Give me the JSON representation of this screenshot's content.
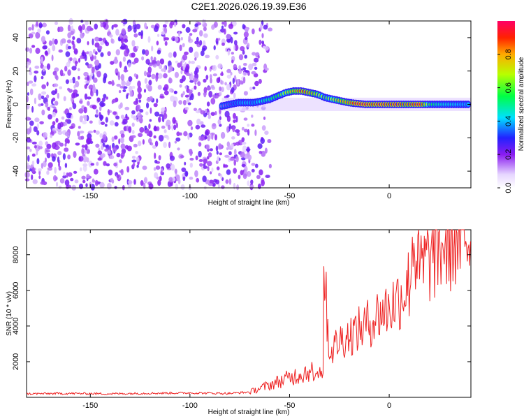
{
  "title": "C2E1.2026.026.19.39.E36",
  "chart_data": [
    {
      "type": "heatmap",
      "xlabel": "Height of straight line (km)",
      "ylabel": "Frequency (Hz)",
      "xlim": [
        -182,
        41
      ],
      "ylim": [
        -50,
        50
      ],
      "xticks": [
        -150,
        -100,
        -50,
        0
      ],
      "yticks": [
        -40,
        -20,
        0,
        20,
        40
      ],
      "colorbar": {
        "label": "Normalized spectral amplitude",
        "range": [
          0,
          1
        ],
        "ticks": [
          "0.0",
          "0.2",
          "0.4",
          "0.6",
          "0.8"
        ],
        "tick_values": [
          0,
          0.2,
          0.4,
          0.6,
          0.8
        ]
      },
      "noise_region": {
        "x_range": [
          -182,
          -63
        ],
        "amplitude": "low (0.1-0.25)"
      },
      "signal_track": {
        "x": [
          -84,
          -80,
          -76,
          -72,
          -68,
          -64,
          -60,
          -56,
          -52,
          -48,
          -44,
          -40,
          -36,
          -32,
          -28,
          -24,
          -20,
          -16,
          -12,
          -8,
          -4,
          0,
          4,
          8,
          12,
          16,
          20,
          24,
          28,
          32,
          36,
          40
        ],
        "frequency": [
          -1,
          0,
          1,
          1,
          1,
          2,
          3,
          5,
          7,
          8,
          8,
          7,
          6,
          4,
          3,
          2,
          1,
          0.5,
          0,
          0,
          0,
          0,
          0,
          0,
          0,
          0,
          0,
          0,
          0,
          0,
          0,
          0
        ],
        "amplitude": [
          0.15,
          0.2,
          0.35,
          0.4,
          0.35,
          0.45,
          0.5,
          0.55,
          0.7,
          0.8,
          0.9,
          0.85,
          0.75,
          0.6,
          0.7,
          0.8,
          0.85,
          0.95,
          0.95,
          0.9,
          0.95,
          0.9,
          0.95,
          0.85,
          0.9,
          0.95,
          0.6,
          0.5,
          0.45,
          0.45,
          0.4,
          0.4
        ]
      }
    },
    {
      "type": "line",
      "xlabel": "Height of straight line (km)",
      "ylabel": "SNR (10 * v/v)",
      "xlim": [
        -182,
        41
      ],
      "ylim": [
        0,
        9400
      ],
      "xticks": [
        -150,
        -100,
        -50,
        0
      ],
      "yticks": [
        2000,
        4000,
        6000,
        8000
      ],
      "color": "#ee2222",
      "series": [
        {
          "name": "SNR",
          "x": [
            -182,
            -160,
            -140,
            -120,
            -100,
            -80,
            -70,
            -65,
            -60,
            -55,
            -50,
            -45,
            -40,
            -35,
            -33,
            -30,
            -25,
            -20,
            -15,
            -10,
            -5,
            0,
            5,
            10,
            12,
            15,
            20,
            25,
            30,
            35,
            41
          ],
          "y": [
            200,
            220,
            200,
            230,
            250,
            220,
            300,
            500,
            700,
            900,
            1100,
            1300,
            1500,
            1700,
            7700,
            2500,
            3200,
            3500,
            3800,
            4200,
            4700,
            5000,
            5600,
            6400,
            9000,
            7000,
            7800,
            8400,
            8800,
            9000,
            9100
          ]
        }
      ]
    }
  ]
}
